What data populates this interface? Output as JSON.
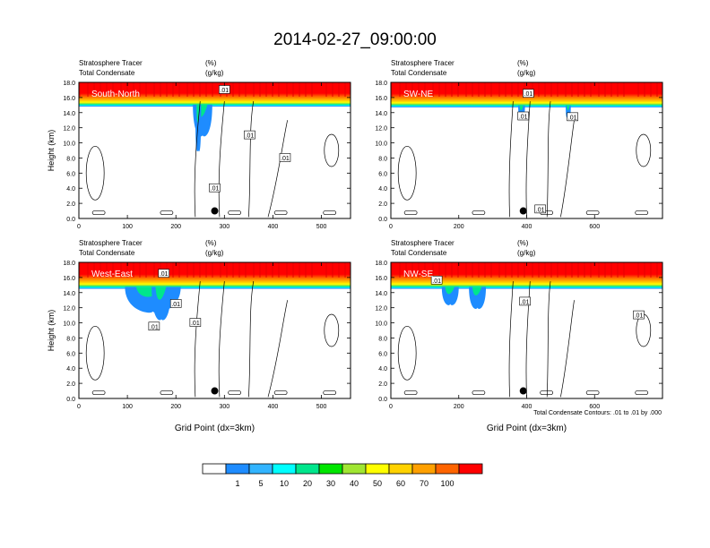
{
  "figure": {
    "title": "2014-02-27_09:00:00",
    "footnote": "Total Condensate Contours: .01 to .01 by .000"
  },
  "chart_data": [
    {
      "type": "heatmap",
      "name": "South-North",
      "panel_label": "South-North",
      "left_title_1": "Stratosphere Tracer",
      "right_title_1": "(%)",
      "left_title_2": "Total Condensate",
      "right_title_2": "(g/kg)",
      "ylabel": "Height (km)",
      "xlabel": "",
      "xlim": [
        0,
        560
      ],
      "ylim": [
        0,
        18
      ],
      "xticks": [
        0,
        100,
        200,
        300,
        400,
        500
      ],
      "yticks": [
        0,
        2,
        4,
        6,
        8,
        10,
        12,
        14,
        16,
        18
      ],
      "tracer_band": {
        "top_km": 18.0,
        "red_bottom_km": 16.1,
        "green_bottom_km": 15.3,
        "blue_bottom_km": 14.8
      },
      "intrusions": [
        {
          "x_start": 235,
          "x_end": 275,
          "bottom_km": 11.0
        },
        {
          "x_start": 240,
          "x_end": 252,
          "bottom_km": 9.0
        }
      ],
      "contour_labels": [
        {
          "text": ".01",
          "x": 300,
          "y_km": 17.0
        },
        {
          "text": ".01",
          "x": 352,
          "y_km": 11.0
        },
        {
          "text": ".01",
          "x": 425,
          "y_km": 8.0
        },
        {
          "text": ".01",
          "x": 280,
          "y_km": 4.0
        }
      ],
      "marker": {
        "x": 280,
        "y_km": 1.0
      }
    },
    {
      "type": "heatmap",
      "name": "SW-NE",
      "panel_label": "SW-NE",
      "left_title_1": "Stratosphere Tracer",
      "right_title_1": "(%)",
      "left_title_2": "Total Condensate",
      "right_title_2": "(g/kg)",
      "ylabel": "",
      "xlabel": "",
      "xlim": [
        0,
        800
      ],
      "ylim": [
        0,
        18
      ],
      "xticks": [
        0,
        200,
        400,
        600
      ],
      "yticks": [
        0,
        2,
        4,
        6,
        8,
        10,
        12,
        14,
        16,
        18
      ],
      "tracer_band": {
        "top_km": 18.0,
        "red_bottom_km": 16.1,
        "green_bottom_km": 15.2,
        "blue_bottom_km": 14.7
      },
      "intrusions": [
        {
          "x_start": 375,
          "x_end": 395,
          "bottom_km": 13.5
        },
        {
          "x_start": 515,
          "x_end": 530,
          "bottom_km": 13.5
        }
      ],
      "contour_labels": [
        {
          "text": ".01",
          "x": 405,
          "y_km": 16.5
        },
        {
          "text": ".01",
          "x": 390,
          "y_km": 13.5
        },
        {
          "text": ".01",
          "x": 535,
          "y_km": 13.4
        },
        {
          "text": ".01",
          "x": 440,
          "y_km": 1.2
        }
      ],
      "marker": {
        "x": 390,
        "y_km": 1.0
      }
    },
    {
      "type": "heatmap",
      "name": "West-East",
      "panel_label": "West-East",
      "left_title_1": "Stratosphere Tracer",
      "right_title_1": "(%)",
      "left_title_2": "Total Condensate",
      "right_title_2": "(g/kg)",
      "ylabel": "Height (km)",
      "xlabel": "Grid Point (dx=3km)",
      "xlim": [
        0,
        560
      ],
      "ylim": [
        0,
        18
      ],
      "xticks": [
        0,
        100,
        200,
        300,
        400,
        500
      ],
      "yticks": [
        0,
        2,
        4,
        6,
        8,
        10,
        12,
        14,
        16,
        18
      ],
      "tracer_band": {
        "top_km": 18.0,
        "red_bottom_km": 16.0,
        "green_bottom_km": 15.0,
        "blue_bottom_km": 14.5
      },
      "intrusions": [
        {
          "x_start": 95,
          "x_end": 210,
          "bottom_km": 11.5
        },
        {
          "x_start": 150,
          "x_end": 190,
          "bottom_km": 10.5
        }
      ],
      "contour_labels": [
        {
          "text": ".01",
          "x": 175,
          "y_km": 16.5
        },
        {
          "text": ".01",
          "x": 200,
          "y_km": 12.5
        },
        {
          "text": ".01",
          "x": 155,
          "y_km": 9.5
        },
        {
          "text": ".01",
          "x": 240,
          "y_km": 10.0
        }
      ],
      "marker": {
        "x": 280,
        "y_km": 1.0
      }
    },
    {
      "type": "heatmap",
      "name": "NW-SE",
      "panel_label": "NW-SE",
      "left_title_1": "Stratosphere Tracer",
      "right_title_1": "(%)",
      "left_title_2": "Total Condensate",
      "right_title_2": "(g/kg)",
      "ylabel": "",
      "xlabel": "Grid Point (dx=3km)",
      "xlim": [
        0,
        800
      ],
      "ylim": [
        0,
        18
      ],
      "xticks": [
        0,
        200,
        400,
        600
      ],
      "yticks": [
        0,
        2,
        4,
        6,
        8,
        10,
        12,
        14,
        16,
        18
      ],
      "tracer_band": {
        "top_km": 18.0,
        "red_bottom_km": 16.0,
        "green_bottom_km": 15.0,
        "blue_bottom_km": 14.5
      },
      "intrusions": [
        {
          "x_start": 150,
          "x_end": 200,
          "bottom_km": 12.5
        },
        {
          "x_start": 230,
          "x_end": 280,
          "bottom_km": 12.0
        }
      ],
      "contour_labels": [
        {
          "text": ".01",
          "x": 135,
          "y_km": 15.6
        },
        {
          "text": ".01",
          "x": 395,
          "y_km": 12.8
        },
        {
          "text": ".01",
          "x": 730,
          "y_km": 11.0
        }
      ],
      "marker": {
        "x": 390,
        "y_km": 1.0
      }
    }
  ],
  "colorbar": {
    "labels": [
      "1",
      "5",
      "10",
      "20",
      "30",
      "40",
      "50",
      "60",
      "70",
      "100"
    ],
    "colors": [
      "#ffffff",
      "#1e8cff",
      "#32b4ff",
      "#00ffff",
      "#00e68c",
      "#00e600",
      "#a0e632",
      "#ffff00",
      "#ffd200",
      "#ffa000",
      "#ff6400",
      "#ff0000"
    ]
  }
}
